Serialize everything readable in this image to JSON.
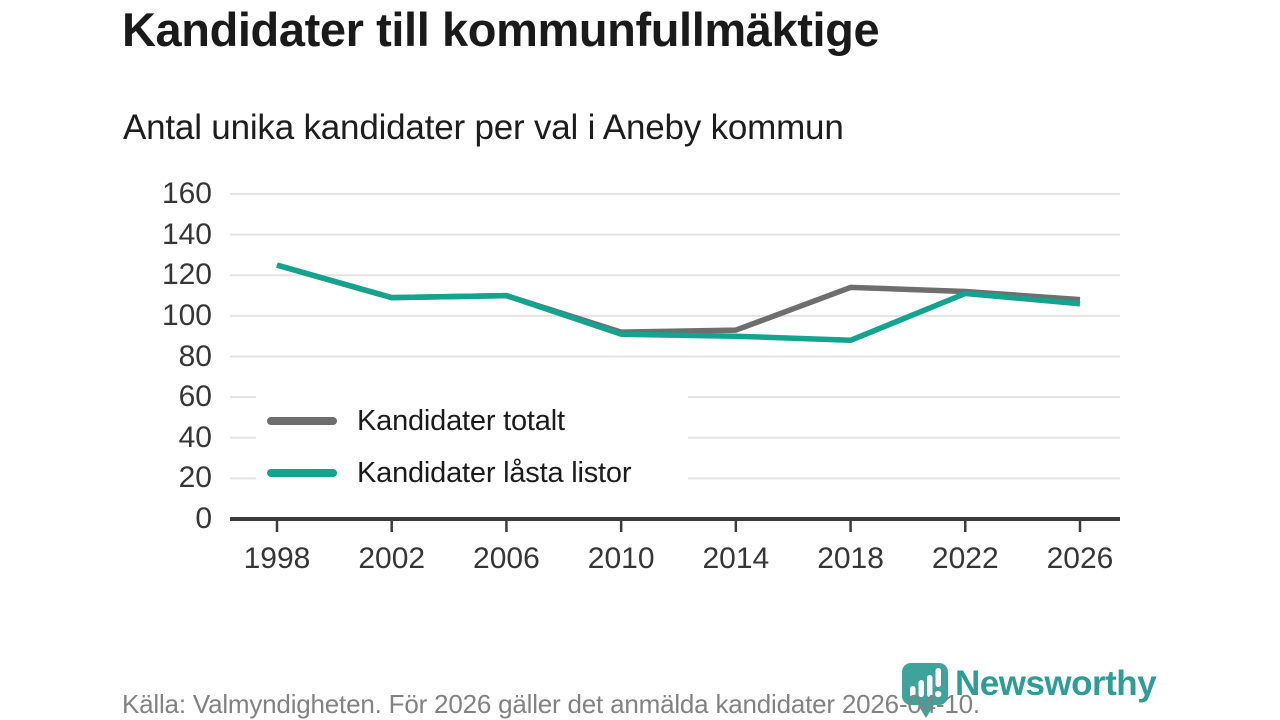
{
  "header": {
    "title": "Kandidater till kommunfullmäktige",
    "subtitle": "Antal unika kandidater per val i Aneby kommun"
  },
  "chart_data": {
    "type": "line",
    "categories": [
      "1998",
      "2002",
      "2006",
      "2010",
      "2014",
      "2018",
      "2022",
      "2026"
    ],
    "series": [
      {
        "name": "Kandidater totalt",
        "color": "#6E6E6E",
        "values": [
          125,
          109,
          110,
          92,
          93,
          114,
          112,
          108
        ]
      },
      {
        "name": "Kandidater låsta listor",
        "color": "#14A38F",
        "values": [
          125,
          109,
          110,
          91,
          90,
          88,
          111,
          106
        ]
      }
    ],
    "y_ticks": [
      0,
      20,
      40,
      60,
      80,
      100,
      120,
      140,
      160
    ],
    "ylim": [
      0,
      160
    ],
    "xlabel": "",
    "ylabel": "",
    "grid": "horizontal",
    "legend_position": "inside-left-middle",
    "grid_color": "#E3E3E3",
    "axis_color": "#3C3C3C"
  },
  "footer": {
    "source": "Källa: Valmyndigheten. För 2026 gäller det anmälda kandidater 2026-04-10.",
    "brand": "Newsworthy",
    "brand_color": "#2F9D95",
    "badge_color": "#3EA49B",
    "badge_icon": "bar-chart-exclamation"
  }
}
